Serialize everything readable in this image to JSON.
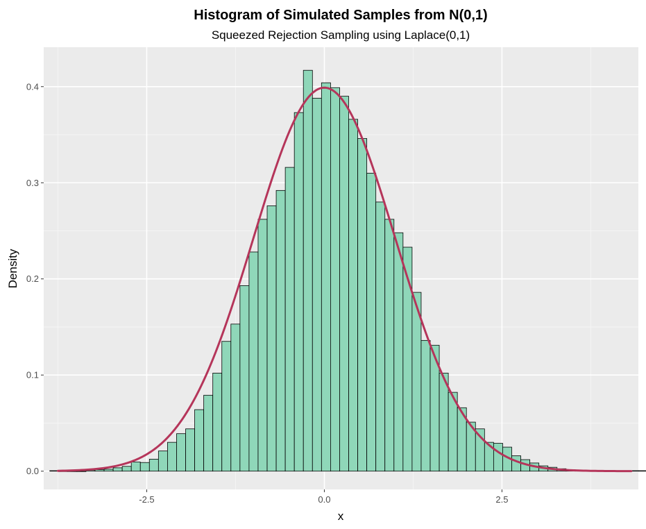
{
  "chart_data": {
    "type": "bar",
    "title": "Histogram of Simulated Samples from N(0,1)",
    "subtitle": "Squeezed Rejection Sampling using Laplace(0,1)",
    "xlabel": "x",
    "ylabel": "Density",
    "xlim": [
      -3.95,
      4.42
    ],
    "ylim": [
      -0.019,
      0.441
    ],
    "x_ticks": [
      -2.5,
      0.0,
      2.5
    ],
    "x_tick_labels": [
      "-2.5",
      "0.0",
      "2.5"
    ],
    "y_ticks": [
      0.0,
      0.1,
      0.2,
      0.3,
      0.4
    ],
    "y_tick_labels": [
      "0.0",
      "0.1",
      "0.2",
      "0.3",
      "0.4"
    ],
    "grid": true,
    "legend": "none",
    "bin_start": -3.865,
    "bin_width": 0.1275,
    "values": [
      0.0005,
      0,
      0,
      0,
      0.001,
      0.0015,
      0.002,
      0.0035,
      0.005,
      0.0095,
      0.009,
      0.0125,
      0.021,
      0.03,
      0.039,
      0.044,
      0.064,
      0.079,
      0.102,
      0.135,
      0.153,
      0.193,
      0.228,
      0.262,
      0.276,
      0.292,
      0.316,
      0.373,
      0.417,
      0.388,
      0.404,
      0.399,
      0.39,
      0.366,
      0.346,
      0.31,
      0.28,
      0.262,
      0.248,
      0.233,
      0.186,
      0.136,
      0.131,
      0.102,
      0.082,
      0.066,
      0.051,
      0.044,
      0.03,
      0.029,
      0.025,
      0.016,
      0.012,
      0.0085,
      0.0055,
      0.004,
      0.0025,
      0.0015,
      0.001,
      0.0005,
      0.0005,
      0.0005,
      0.0005,
      0.0005,
      0.0005,
      0.0005,
      0.0005,
      0.0005
    ],
    "curve": {
      "function": "normal-density",
      "mean": 0,
      "sd": 1,
      "x_range": [
        -3.75,
        4.32
      ]
    },
    "colors": {
      "panel_background": "#ebebeb",
      "grid_major": "#ffffff",
      "grid_minor": "#f5f5f5",
      "bar_fill": "#8fd7b9",
      "bar_stroke": "#000000",
      "curve": "#b5355a",
      "tick_label": "#4d4d4d",
      "text": "#000000"
    }
  }
}
